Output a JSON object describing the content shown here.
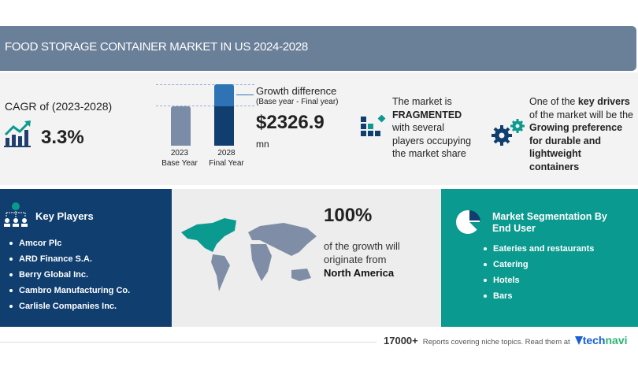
{
  "header": {
    "title": "FOOD STORAGE CONTAINER MARKET IN US 2024-2028"
  },
  "cagr": {
    "label": "CAGR of (2023-2028)",
    "value": "3.3%",
    "icon": "growth-chart-icon"
  },
  "bars": {
    "base_year": "2023",
    "base_label": "Base Year",
    "final_year": "2028",
    "final_label": "Final Year"
  },
  "growth": {
    "title": "Growth difference",
    "subtitle": "(Base year - Final year)",
    "value": "$2326.9",
    "unit": "mn"
  },
  "market": {
    "line1": "The market is",
    "bold": "FRAGMENTED",
    "line3": "with several",
    "line4": "players occupying",
    "line5": "the market share"
  },
  "drivers": {
    "line1": "One of the ",
    "bold1": "key drivers",
    "line2": "of the market will be the",
    "b2": "Growing preference",
    "b3": "for durable and",
    "b4": "lightweight",
    "b5": "containers"
  },
  "key_players": {
    "title": "Key Players",
    "items": [
      "Amcor Plc",
      "ARD Finance S.A.",
      "Berry Global Inc.",
      "Cambro Manufacturing Co.",
      "Carlisle Companies Inc."
    ]
  },
  "region": {
    "percent": "100%",
    "line1": "of the growth will",
    "line2": "originate from",
    "region": "North America"
  },
  "segmentation": {
    "title1": "Market Segmentation By",
    "title2": "End User",
    "items": [
      "Eateries and restaurants",
      "Catering",
      "Hotels",
      "Bars"
    ]
  },
  "footer": {
    "count": "17000+",
    "text": "Reports covering niche topics. Read them at",
    "brand1": "tech",
    "brand2": "navi"
  },
  "colors": {
    "header": "#6a7f98",
    "navy": "#0f3e6f",
    "teal": "#0b9a8f"
  }
}
